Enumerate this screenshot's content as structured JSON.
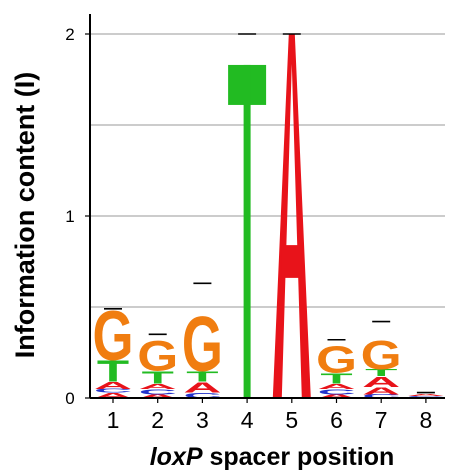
{
  "chart_data": {
    "type": "sequence-logo",
    "ylabel": "Information content (I)",
    "xlabel_italic": "loxP",
    "xlabel_rest": " spacer position",
    "ylim": [
      0,
      2
    ],
    "yticks": [
      {
        "value": 0,
        "label": "0"
      },
      {
        "value": 1,
        "label": "1"
      },
      {
        "value": 2,
        "label": "2"
      }
    ],
    "grid_values": [
      0.5,
      1.0,
      1.5,
      2.0
    ],
    "colors": {
      "A": "#e8131a",
      "C": "#2233cc",
      "G": "#f07d10",
      "T": "#22bb22"
    },
    "positions": [
      {
        "label": "1",
        "stack": [
          {
            "letter": "A",
            "height": 0.03
          },
          {
            "letter": "C",
            "height": 0.02
          },
          {
            "letter": "A",
            "height": 0.04
          },
          {
            "letter": "T",
            "height": 0.12
          },
          {
            "letter": "G",
            "height": 0.28
          }
        ],
        "error": 0.49
      },
      {
        "label": "2",
        "stack": [
          {
            "letter": "A",
            "height": 0.02
          },
          {
            "letter": "C",
            "height": 0.03
          },
          {
            "letter": "A",
            "height": 0.03
          },
          {
            "letter": "T",
            "height": 0.07
          },
          {
            "letter": "G",
            "height": 0.17
          }
        ],
        "error": 0.35
      },
      {
        "label": "3",
        "stack": [
          {
            "letter": "C",
            "height": 0.03
          },
          {
            "letter": "A",
            "height": 0.06
          },
          {
            "letter": "T",
            "height": 0.06
          },
          {
            "letter": "G",
            "height": 0.31
          }
        ],
        "error": 0.63
      },
      {
        "label": "4",
        "stack": [
          {
            "letter": "T",
            "height": 1.83
          }
        ],
        "error": 2.0
      },
      {
        "label": "5",
        "stack": [
          {
            "letter": "A",
            "height": 2.0
          }
        ],
        "error": 2.0
      },
      {
        "label": "6",
        "stack": [
          {
            "letter": "A",
            "height": 0.02
          },
          {
            "letter": "C",
            "height": 0.03
          },
          {
            "letter": "A",
            "height": 0.03
          },
          {
            "letter": "T",
            "height": 0.06
          },
          {
            "letter": "G",
            "height": 0.15
          }
        ],
        "error": 0.32
      },
      {
        "label": "7",
        "stack": [
          {
            "letter": "C",
            "height": 0.02
          },
          {
            "letter": "A",
            "height": 0.04
          },
          {
            "letter": "A",
            "height": 0.06
          },
          {
            "letter": "T",
            "height": 0.04
          },
          {
            "letter": "G",
            "height": 0.16
          }
        ],
        "error": 0.42
      },
      {
        "label": "8",
        "stack": [
          {
            "letter": "C",
            "height": 0.01
          },
          {
            "letter": "A",
            "height": 0.01
          }
        ],
        "error": 0.03
      }
    ]
  }
}
